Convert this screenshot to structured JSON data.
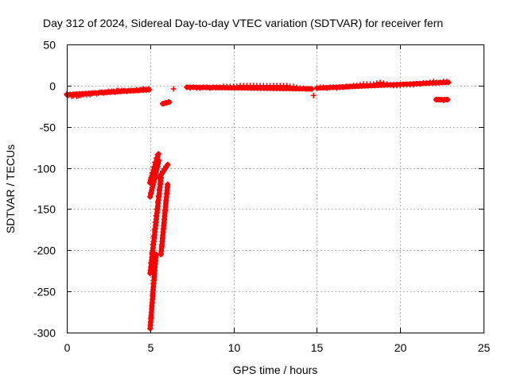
{
  "chart_data": {
    "type": "scatter",
    "title": "Day 312 of 2024, Sidereal Day-to-day VTEC variation (SDTVAR) for receiver fern",
    "xlabel": "GPS time / hours",
    "ylabel": "SDTVAR / TECUs",
    "xlim": [
      0,
      25
    ],
    "ylim": [
      -300,
      50
    ],
    "xticks": [
      0,
      5,
      10,
      15,
      20,
      25
    ],
    "xtick_labels": [
      "0",
      "5",
      "10",
      "15",
      "20",
      "25"
    ],
    "yticks": [
      -300,
      -250,
      -200,
      -150,
      -100,
      -50,
      0,
      50
    ],
    "ytick_labels": [
      "-300",
      "-250",
      "-200",
      "-150",
      "-100",
      "-50",
      "0",
      "50"
    ],
    "grid": true,
    "marker": "plus",
    "color": "#ff0000",
    "series": [
      {
        "points": [
          [
            0.0,
            -10
          ],
          [
            0.1,
            -12
          ],
          [
            0.2,
            -11
          ],
          [
            0.3,
            -13
          ],
          [
            0.4,
            -12
          ],
          [
            0.5,
            -11
          ],
          [
            0.6,
            -13
          ],
          [
            0.7,
            -12
          ],
          [
            0.8,
            -12
          ],
          [
            0.9,
            -11
          ],
          [
            1.0,
            -11
          ],
          [
            1.1,
            -10
          ],
          [
            1.2,
            -11
          ],
          [
            1.3,
            -10
          ],
          [
            1.4,
            -11
          ],
          [
            1.5,
            -10
          ],
          [
            1.6,
            -9
          ],
          [
            1.7,
            -9
          ],
          [
            1.8,
            -10
          ],
          [
            1.9,
            -9
          ],
          [
            2.0,
            -8
          ],
          [
            2.1,
            -8
          ],
          [
            2.2,
            -9
          ],
          [
            2.3,
            -8
          ],
          [
            2.4,
            -8
          ],
          [
            2.5,
            -7
          ],
          [
            2.6,
            -8
          ],
          [
            2.7,
            -7
          ],
          [
            2.8,
            -7
          ],
          [
            2.9,
            -8
          ],
          [
            3.0,
            -6
          ],
          [
            3.1,
            -6
          ],
          [
            3.2,
            -7
          ],
          [
            3.3,
            -6
          ],
          [
            3.4,
            -6
          ],
          [
            3.5,
            -6
          ],
          [
            3.6,
            -7
          ],
          [
            3.7,
            -6
          ],
          [
            3.8,
            -6
          ],
          [
            3.9,
            -6
          ],
          [
            4.0,
            -6
          ],
          [
            4.1,
            -6
          ],
          [
            4.2,
            -5
          ],
          [
            4.3,
            -6
          ],
          [
            4.4,
            -5
          ],
          [
            4.5,
            -5
          ],
          [
            4.6,
            -4
          ],
          [
            4.7,
            -5
          ],
          [
            4.8,
            -5
          ],
          [
            4.9,
            -4
          ],
          [
            5.8,
            -22
          ],
          [
            5.9,
            -21
          ],
          [
            6.0,
            -21
          ],
          [
            6.1,
            -20
          ],
          [
            6.4,
            -4
          ],
          [
            7.2,
            -2
          ],
          [
            7.4,
            -3
          ],
          [
            7.6,
            -2
          ],
          [
            7.8,
            -3
          ],
          [
            8.0,
            -3
          ],
          [
            8.2,
            -2
          ],
          [
            8.4,
            -2
          ],
          [
            8.6,
            -3
          ],
          [
            8.8,
            -2
          ],
          [
            9.0,
            -2
          ],
          [
            9.2,
            -2
          ],
          [
            9.4,
            -1
          ],
          [
            9.6,
            -1
          ],
          [
            9.8,
            -1
          ],
          [
            10.0,
            -1
          ],
          [
            10.2,
            -1
          ],
          [
            10.4,
            0
          ],
          [
            10.6,
            0
          ],
          [
            10.8,
            0
          ],
          [
            11.0,
            0
          ],
          [
            11.2,
            0
          ],
          [
            11.4,
            0
          ],
          [
            11.6,
            0
          ],
          [
            11.8,
            0
          ],
          [
            12.0,
            0
          ],
          [
            12.2,
            0
          ],
          [
            12.4,
            0
          ],
          [
            12.6,
            0
          ],
          [
            12.8,
            0
          ],
          [
            13.0,
            0
          ],
          [
            13.2,
            0
          ],
          [
            13.4,
            -1
          ],
          [
            13.6,
            -1
          ],
          [
            13.8,
            -2
          ],
          [
            14.0,
            -3
          ],
          [
            14.2,
            -3
          ],
          [
            14.4,
            -4
          ],
          [
            14.6,
            -4
          ],
          [
            14.8,
            -12
          ],
          [
            15.0,
            -3
          ],
          [
            15.2,
            -2
          ],
          [
            15.4,
            -2
          ],
          [
            15.6,
            -3
          ],
          [
            15.8,
            -2
          ],
          [
            16.0,
            -2
          ],
          [
            16.2,
            -3
          ],
          [
            16.4,
            -2
          ],
          [
            16.6,
            -2
          ],
          [
            16.8,
            -1
          ],
          [
            17.0,
            -1
          ],
          [
            17.2,
            0
          ],
          [
            17.4,
            0
          ],
          [
            17.6,
            1
          ],
          [
            17.8,
            2
          ],
          [
            18.0,
            2
          ],
          [
            18.2,
            2
          ],
          [
            18.4,
            2
          ],
          [
            18.6,
            3
          ],
          [
            18.8,
            4
          ],
          [
            19.0,
            3
          ],
          [
            19.2,
            2
          ],
          [
            19.4,
            1
          ],
          [
            19.6,
            0
          ],
          [
            19.8,
            0
          ],
          [
            20.0,
            0
          ],
          [
            20.2,
            1
          ],
          [
            20.4,
            1
          ],
          [
            20.6,
            1
          ],
          [
            20.8,
            1
          ],
          [
            21.0,
            2
          ],
          [
            21.2,
            2
          ],
          [
            21.4,
            3
          ],
          [
            21.6,
            3
          ],
          [
            21.8,
            4
          ],
          [
            22.0,
            5
          ],
          [
            22.2,
            4
          ],
          [
            22.4,
            4
          ],
          [
            22.6,
            5
          ],
          [
            22.8,
            5
          ],
          [
            22.2,
            -17
          ],
          [
            22.4,
            -17
          ],
          [
            22.6,
            -18
          ],
          [
            22.8,
            -17
          ],
          [
            4.98,
            -118
          ],
          [
            5.05,
            -112
          ],
          [
            5.12,
            -106
          ],
          [
            5.2,
            -99
          ],
          [
            5.28,
            -93
          ],
          [
            5.36,
            -88
          ],
          [
            5.44,
            -84
          ],
          [
            5.5,
            -83
          ],
          [
            5.52,
            -91
          ],
          [
            5.44,
            -99
          ],
          [
            5.36,
            -105
          ],
          [
            5.28,
            -112
          ],
          [
            5.2,
            -118
          ],
          [
            5.12,
            -124
          ],
          [
            5.05,
            -130
          ],
          [
            5.0,
            -135
          ],
          [
            5.55,
            -112
          ],
          [
            5.65,
            -108
          ],
          [
            5.75,
            -104
          ],
          [
            5.85,
            -101
          ],
          [
            5.95,
            -98
          ],
          [
            6.05,
            -96
          ],
          [
            5.0,
            -228
          ],
          [
            5.05,
            -215
          ],
          [
            5.1,
            -203
          ],
          [
            5.15,
            -193
          ],
          [
            5.2,
            -183
          ],
          [
            5.25,
            -175
          ],
          [
            5.3,
            -166
          ],
          [
            5.35,
            -158
          ],
          [
            5.4,
            -150
          ],
          [
            5.45,
            -141
          ],
          [
            5.5,
            -134
          ],
          [
            5.55,
            -126
          ],
          [
            5.6,
            -119
          ],
          [
            5.65,
            -112
          ],
          [
            5.0,
            -295
          ],
          [
            5.05,
            -282
          ],
          [
            5.1,
            -268
          ],
          [
            5.15,
            -254
          ],
          [
            5.2,
            -240
          ],
          [
            5.25,
            -227
          ],
          [
            5.3,
            -214
          ],
          [
            5.35,
            -205
          ],
          [
            5.65,
            -205
          ],
          [
            5.7,
            -195
          ],
          [
            5.75,
            -185
          ],
          [
            5.8,
            -174
          ],
          [
            5.85,
            -163
          ],
          [
            5.9,
            -152
          ],
          [
            5.95,
            -141
          ],
          [
            6.0,
            -131
          ],
          [
            6.05,
            -122
          ]
        ],
        "segments": [
          [
            [
              0.0,
              -11
            ],
            [
              4.95,
              -5
            ]
          ],
          [
            [
              5.75,
              -22
            ],
            [
              6.15,
              -20
            ]
          ],
          [
            [
              7.2,
              -2
            ],
            [
              14.7,
              -4
            ]
          ],
          [
            [
              15.0,
              -3
            ],
            [
              22.9,
              4
            ]
          ],
          [
            [
              22.15,
              -17
            ],
            [
              22.85,
              -17
            ]
          ],
          [
            [
              4.98,
              -118
            ],
            [
              5.5,
              -83
            ]
          ],
          [
            [
              5.52,
              -91
            ],
            [
              5.0,
              -135
            ]
          ],
          [
            [
              5.55,
              -112
            ],
            [
              6.05,
              -96
            ]
          ],
          [
            [
              5.0,
              -228
            ],
            [
              5.65,
              -112
            ]
          ],
          [
            [
              5.0,
              -295
            ],
            [
              5.35,
              -205
            ]
          ],
          [
            [
              5.65,
              -205
            ],
            [
              6.05,
              -120
            ]
          ]
        ]
      }
    ]
  }
}
